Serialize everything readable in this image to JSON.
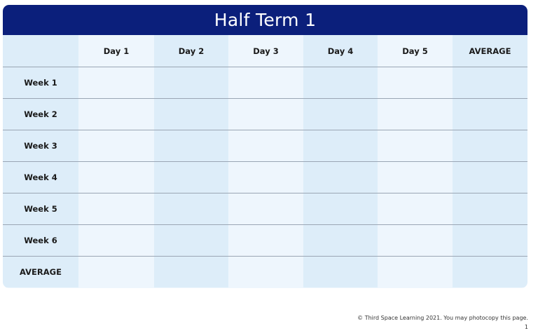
{
  "title": "Half Term 1",
  "columns": [
    "",
    "Day 1",
    "Day 2",
    "Day 3",
    "Day 4",
    "Day 5",
    "AVERAGE"
  ],
  "rows": [
    "Week 1",
    "Week 2",
    "Week 3",
    "Week 4",
    "Week 5",
    "Week 6",
    "AVERAGE"
  ],
  "colors": {
    "header": "#0b1f7b",
    "cell_dark": "#ddedf9",
    "cell_light": "#eef6fd"
  },
  "footer": {
    "copyright": "© Third Space Learning 2021. You may photocopy this page.",
    "page_number": "1"
  }
}
